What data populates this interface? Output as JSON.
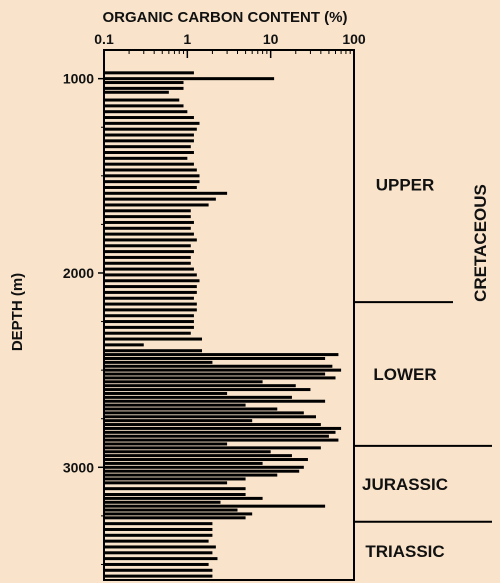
{
  "chart_data": {
    "type": "bar",
    "orientation": "horizontal",
    "title": "ORGANIC CARBON CONTENT (%)",
    "ylabel": "DEPTH (m)",
    "x_scale": "log",
    "xlim": [
      0.1,
      100
    ],
    "x_ticks": [
      "0.1",
      "1",
      "10",
      "100"
    ],
    "ylim": [
      3580,
      940
    ],
    "y_ticks": [
      "1000",
      "2000",
      "3000"
    ],
    "grid": false,
    "legend": "none",
    "bar_color": "#000000",
    "intervals": [
      {
        "label": "UPPER",
        "top": 940,
        "base": 2150
      },
      {
        "label": "LOWER",
        "top": 2150,
        "base": 2890
      },
      {
        "label": "JURASSIC",
        "top": 2890,
        "base": 3280
      },
      {
        "label": "TRIASSIC",
        "top": 3280,
        "base": 3580
      }
    ],
    "period_label": "CRETACEOUS",
    "depths": [
      970,
      1000,
      1020,
      1050,
      1070,
      1110,
      1140,
      1170,
      1200,
      1230,
      1260,
      1290,
      1320,
      1350,
      1380,
      1410,
      1440,
      1470,
      1500,
      1530,
      1560,
      1590,
      1620,
      1650,
      1680,
      1710,
      1740,
      1770,
      1800,
      1830,
      1860,
      1890,
      1920,
      1950,
      1980,
      2010,
      2040,
      2070,
      2100,
      2130,
      2160,
      2190,
      2220,
      2250,
      2280,
      2310,
      2340,
      2370,
      2400,
      2420,
      2440,
      2460,
      2480,
      2500,
      2520,
      2540,
      2560,
      2580,
      2600,
      2620,
      2640,
      2660,
      2680,
      2700,
      2720,
      2740,
      2760,
      2780,
      2800,
      2820,
      2840,
      2860,
      2880,
      2900,
      2920,
      2940,
      2960,
      2980,
      3000,
      3020,
      3040,
      3060,
      3080,
      3110,
      3140,
      3160,
      3180,
      3200,
      3220,
      3240,
      3260,
      3290,
      3320,
      3350,
      3380,
      3410,
      3440,
      3470,
      3500,
      3530,
      3560
    ],
    "values": [
      1.2,
      11,
      0.9,
      0.9,
      0.6,
      0.8,
      0.9,
      1.0,
      1.2,
      1.4,
      1.3,
      1.2,
      1.2,
      1.1,
      1.2,
      1.0,
      1.2,
      1.3,
      1.4,
      1.4,
      1.3,
      3.0,
      2.2,
      1.8,
      1.1,
      1.1,
      1.2,
      1.1,
      1.2,
      1.3,
      1.1,
      1.2,
      1.1,
      1.1,
      1.2,
      1.3,
      1.4,
      1.3,
      1.3,
      1.2,
      1.3,
      1.3,
      1.2,
      1.2,
      1.2,
      1.1,
      1.5,
      0.3,
      1.5,
      65,
      45,
      2.0,
      55,
      70,
      45,
      60,
      8,
      20,
      30,
      3,
      18,
      45,
      5,
      12,
      25,
      35,
      6,
      40,
      70,
      60,
      50,
      65,
      3,
      40,
      10,
      18,
      28,
      8,
      25,
      22,
      12,
      5,
      3,
      5,
      5,
      8,
      2.5,
      45,
      4,
      6,
      5,
      2,
      2,
      2,
      1.8,
      2.2,
      2.0,
      2.3,
      1.8,
      2.0,
      2.0
    ]
  }
}
